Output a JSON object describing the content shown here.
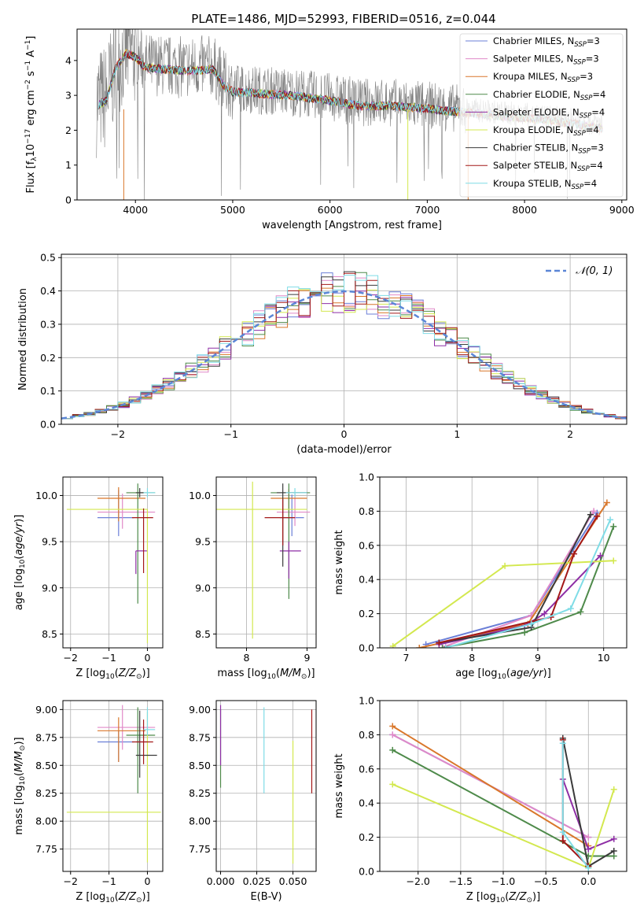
{
  "figure": {
    "title": "PLATE=1486, MJD=52993, FIBERID=0516, z=0.044"
  },
  "models": [
    {
      "name": "Chabrier MILES",
      "nssp": "3",
      "color": "#6b7fd7"
    },
    {
      "name": "Salpeter MILES",
      "nssp": "3",
      "color": "#e089c8"
    },
    {
      "name": "Kroupa MILES",
      "nssp": "3",
      "color": "#d9772b"
    },
    {
      "name": "Chabrier ELODIE",
      "nssp": "4",
      "color": "#4e8a4a"
    },
    {
      "name": "Salpeter ELODIE",
      "nssp": "4",
      "color": "#8e2ea5"
    },
    {
      "name": "Kroupa ELODIE",
      "nssp": "4",
      "color": "#d3e84f"
    },
    {
      "name": "Chabrier STELIB",
      "nssp": "3",
      "color": "#3a3a3a"
    },
    {
      "name": "Salpeter STELIB",
      "nssp": "4",
      "color": "#a31818"
    },
    {
      "name": "Kroupa STELIB",
      "nssp": "4",
      "color": "#7fdce6"
    }
  ],
  "chart_data": [
    {
      "id": "spectrum",
      "type": "line",
      "xlabel": "wavelength [Angstrom, rest frame]",
      "ylabel": "Flux [f_λ 10^-17 erg cm^-2 s^-1 A^-1]",
      "xlim": [
        3400,
        9050
      ],
      "ylim": [
        0,
        4.9
      ],
      "xticks": [
        4000,
        5000,
        6000,
        7000,
        8000,
        9000
      ],
      "yticks": [
        0,
        1,
        2,
        3,
        4
      ],
      "data_color": "#808080",
      "data_range": [
        3600,
        8800
      ],
      "continuum": [
        [
          3600,
          2.8
        ],
        [
          3700,
          2.95
        ],
        [
          3800,
          3.9
        ],
        [
          3900,
          4.3
        ],
        [
          4000,
          4.2
        ],
        [
          4100,
          3.9
        ],
        [
          4300,
          3.85
        ],
        [
          4500,
          3.8
        ],
        [
          4800,
          3.85
        ],
        [
          4900,
          3.4
        ],
        [
          5000,
          3.2
        ],
        [
          5300,
          3.15
        ],
        [
          5600,
          3.1
        ],
        [
          6000,
          2.95
        ],
        [
          6300,
          2.8
        ],
        [
          6600,
          2.8
        ],
        [
          7000,
          2.72
        ],
        [
          7400,
          2.6
        ],
        [
          7800,
          2.5
        ],
        [
          8200,
          2.4
        ],
        [
          8600,
          2.25
        ],
        [
          8800,
          2.15
        ]
      ]
    },
    {
      "id": "residuals",
      "type": "histogram",
      "xlabel": "(data-model)/error",
      "ylabel": "Normed distribution",
      "xlim": [
        -2.5,
        2.5
      ],
      "ylim": [
        0,
        0.51
      ],
      "xticks": [
        -2,
        -1,
        0,
        1,
        2
      ],
      "yticks": [
        0.0,
        0.1,
        0.2,
        0.3,
        0.4,
        0.5
      ],
      "reference": {
        "label": "𝒩(0, 1)",
        "mu": 0,
        "sigma": 1,
        "color": "#5b86d6"
      }
    },
    {
      "id": "age_vs_Z",
      "type": "errorbar",
      "xlabel": "Z [log10(Z/Z⊙)]",
      "ylabel": "age [log10(age/yr)]",
      "xlim": [
        -2.2,
        0.4
      ],
      "ylim": [
        8.35,
        10.2
      ],
      "xticks": [
        -2,
        -1,
        0
      ],
      "yticks": [
        8.5,
        9.0,
        9.5,
        10.0
      ]
    },
    {
      "id": "age_vs_mass",
      "type": "errorbar",
      "xlabel": "mass [log10(M/M⊙)]",
      "ylabel": "",
      "xlim": [
        7.5,
        9.15
      ],
      "ylim": [
        8.35,
        10.2
      ],
      "xticks": [
        8,
        9
      ],
      "yticks": [
        8.5,
        9.0,
        9.5,
        10.0
      ]
    },
    {
      "id": "mw_vs_age",
      "type": "line",
      "xlabel": "age [log10(age/yr)]",
      "ylabel": "mass weight",
      "xlim": [
        6.6,
        10.35
      ],
      "ylim": [
        0,
        1.0
      ],
      "xticks": [
        7,
        8,
        9,
        10
      ],
      "yticks": [
        0.0,
        0.2,
        0.4,
        0.6,
        0.8,
        1.0
      ],
      "series": [
        {
          "model": 0,
          "x": [
            7.3,
            8.9,
            9.9
          ],
          "y": [
            0.02,
            0.19,
            0.79
          ]
        },
        {
          "model": 1,
          "x": [
            7.6,
            8.9,
            9.85
          ],
          "y": [
            0.01,
            0.19,
            0.8
          ]
        },
        {
          "model": 2,
          "x": [
            7.2,
            8.85,
            10.05
          ],
          "y": [
            0.0,
            0.14,
            0.85
          ]
        },
        {
          "model": 3,
          "x": [
            7.55,
            8.8,
            9.65,
            10.15
          ],
          "y": [
            0.0,
            0.09,
            0.21,
            0.71
          ]
        },
        {
          "model": 4,
          "x": [
            7.5,
            8.8,
            9.1,
            9.95
          ],
          "y": [
            0.02,
            0.13,
            0.2,
            0.54
          ]
        },
        {
          "model": 5,
          "x": [
            6.8,
            8.5,
            10.15
          ],
          "y": [
            0.01,
            0.48,
            0.51
          ]
        },
        {
          "model": 6,
          "x": [
            7.5,
            8.9,
            9.8
          ],
          "y": [
            0.03,
            0.12,
            0.78
          ]
        },
        {
          "model": 7,
          "x": [
            7.5,
            9.2,
            9.55,
            9.9
          ],
          "y": [
            0.03,
            0.18,
            0.55,
            0.77
          ]
        },
        {
          "model": 8,
          "x": [
            7.6,
            8.9,
            9.5,
            10.1
          ],
          "y": [
            0.0,
            0.14,
            0.23,
            0.75
          ]
        }
      ]
    },
    {
      "id": "mass_vs_Z",
      "type": "errorbar",
      "xlabel": "Z [log10(Z/Z⊙)]",
      "ylabel": "mass [log10(M/M⊙)]",
      "xlim": [
        -2.2,
        0.4
      ],
      "ylim": [
        7.55,
        9.08
      ],
      "xticks": [
        -2,
        -1,
        0
      ],
      "yticks": [
        7.75,
        8.0,
        8.25,
        8.5,
        8.75,
        9.0
      ]
    },
    {
      "id": "mass_vs_ebv",
      "type": "errorbar",
      "xlabel": "E(B-V)",
      "ylabel": "",
      "xlim": [
        -0.003,
        0.066
      ],
      "ylim": [
        7.55,
        9.08
      ],
      "xticks": [
        0.0,
        0.025,
        0.05
      ],
      "yticks": [
        7.75,
        8.0,
        8.25,
        8.5,
        8.75,
        9.0
      ]
    },
    {
      "id": "mw_vs_Z",
      "type": "line",
      "xlabel": "Z [log10(Z/Z⊙)]",
      "ylabel": "mass weight",
      "xlim": [
        -2.45,
        0.45
      ],
      "ylim": [
        0,
        1.0
      ],
      "xticks": [
        -2.0,
        -1.5,
        -1.0,
        -0.5,
        0.0
      ],
      "yticks": [
        0.0,
        0.2,
        0.4,
        0.6,
        0.8,
        1.0
      ],
      "series": [
        {
          "model": 0,
          "x": [
            -2.3,
            0.0
          ],
          "y": [
            0.8,
            0.2
          ]
        },
        {
          "model": 1,
          "x": [
            -2.3,
            0.0
          ],
          "y": [
            0.8,
            0.2
          ]
        },
        {
          "model": 2,
          "x": [
            -2.3,
            0.0
          ],
          "y": [
            0.85,
            0.15
          ]
        },
        {
          "model": 3,
          "x": [
            -2.3,
            0.0,
            0.3
          ],
          "y": [
            0.71,
            0.09,
            0.09
          ]
        },
        {
          "model": 4,
          "x": [
            -0.3,
            0.0,
            0.3
          ],
          "y": [
            0.54,
            0.13,
            0.19
          ]
        },
        {
          "model": 5,
          "x": [
            -2.3,
            0.0,
            0.3
          ],
          "y": [
            0.51,
            0.02,
            0.48
          ]
        },
        {
          "model": 6,
          "x": [
            -0.3,
            0.0,
            0.3
          ],
          "y": [
            0.78,
            0.03,
            0.12
          ]
        },
        {
          "model": 7,
          "x": [
            -0.3,
            -0.3,
            0.0
          ],
          "y": [
            0.77,
            0.18,
            0.03
          ]
        },
        {
          "model": 8,
          "x": [
            -0.3,
            -0.3,
            0.0
          ],
          "y": [
            0.75,
            0.23,
            0.02
          ]
        }
      ]
    }
  ],
  "errorbars": {
    "age_vs_Z": [
      {
        "model": 0,
        "x": -0.75,
        "xerr": [
          0.55,
          0.4
        ],
        "y": 9.76,
        "yerr": [
          0.2,
          0.3
        ]
      },
      {
        "model": 1,
        "x": -0.65,
        "xerr": [
          0.65,
          0.85
        ],
        "y": 9.82,
        "yerr": [
          0.18,
          0.2
        ]
      },
      {
        "model": 2,
        "x": -0.75,
        "xerr": [
          0.55,
          0.7
        ],
        "y": 9.97,
        "yerr": [
          0.25,
          0.12
        ]
      },
      {
        "model": 3,
        "x": -0.25,
        "xerr": [
          0.3,
          0.45
        ],
        "y": 10.03,
        "yerr": [
          1.2,
          0.1
        ]
      },
      {
        "model": 4,
        "x": -0.3,
        "xerr": [
          0.0,
          0.3
        ],
        "y": 9.4,
        "yerr": [
          0.25,
          0.0
        ]
      },
      {
        "model": 5,
        "x": 0.0,
        "xerr": [
          2.1,
          0.0
        ],
        "y": 9.85,
        "yerr": [
          1.45,
          0.0
        ]
      },
      {
        "model": 6,
        "x": -0.2,
        "xerr": [
          0.1,
          0.1
        ],
        "y": 10.03,
        "yerr": [
          0.05,
          0.05
        ]
      },
      {
        "model": 7,
        "x": -0.1,
        "xerr": [
          0.3,
          0.25
        ],
        "y": 9.76,
        "yerr": [
          0.6,
          0.1
        ]
      },
      {
        "model": 8,
        "x": 0.0,
        "xerr": [
          0.1,
          0.2
        ],
        "y": 10.03,
        "yerr": [
          0.05,
          0.05
        ]
      }
    ],
    "age_vs_mass": [
      {
        "model": 0,
        "x": 8.75,
        "xerr": [
          0.2,
          0.2
        ],
        "y": 9.76,
        "yerr": [
          0.2,
          0.25
        ]
      },
      {
        "model": 1,
        "x": 8.8,
        "xerr": [
          0.3,
          0.25
        ],
        "y": 9.82,
        "yerr": [
          0.15,
          0.2
        ]
      },
      {
        "model": 2,
        "x": 8.7,
        "xerr": [
          0.3,
          0.3
        ],
        "y": 9.97,
        "yerr": [
          0.2,
          0.1
        ]
      },
      {
        "model": 3,
        "x": 8.7,
        "xerr": [
          0.3,
          0.35
        ],
        "y": 10.03,
        "yerr": [
          1.15,
          0.1
        ]
      },
      {
        "model": 4,
        "x": 8.7,
        "xerr": [
          0.15,
          0.2
        ],
        "y": 9.4,
        "yerr": [
          0.3,
          0.1
        ]
      },
      {
        "model": 5,
        "x": 8.1,
        "xerr": [
          0.6,
          0.9
        ],
        "y": 9.85,
        "yerr": [
          1.4,
          0.3
        ]
      },
      {
        "model": 6,
        "x": 8.6,
        "xerr": [
          0.1,
          0.4
        ],
        "y": 10.03,
        "yerr": [
          0.8,
          0.1
        ]
      },
      {
        "model": 7,
        "x": 8.6,
        "xerr": [
          0.3,
          0.2
        ],
        "y": 9.76,
        "yerr": [
          0.3,
          0.2
        ]
      },
      {
        "model": 8,
        "x": 8.8,
        "xerr": [
          0.15,
          0.2
        ],
        "y": 10.03,
        "yerr": [
          0.05,
          0.05
        ]
      }
    ],
    "mass_vs_Z": [
      {
        "model": 0,
        "x": -0.75,
        "xerr": [
          0.55,
          0.4
        ],
        "y": 8.71,
        "yerr": [
          0.18,
          0.1
        ]
      },
      {
        "model": 1,
        "x": -0.65,
        "xerr": [
          0.65,
          0.85
        ],
        "y": 8.84,
        "yerr": [
          0.2,
          0.2
        ]
      },
      {
        "model": 2,
        "x": -0.75,
        "xerr": [
          0.55,
          0.7
        ],
        "y": 8.81,
        "yerr": [
          0.28,
          0.12
        ]
      },
      {
        "model": 3,
        "x": -0.25,
        "xerr": [
          0.3,
          0.45
        ],
        "y": 8.77,
        "yerr": [
          0.52,
          0.25
        ]
      },
      {
        "model": 4,
        "x": -0.3,
        "xerr": [
          0.0,
          0.3
        ],
        "y": 8.71,
        "yerr": [
          0.0,
          0.0
        ]
      },
      {
        "model": 5,
        "x": 0.0,
        "xerr": [
          2.1,
          0.35
        ],
        "y": 8.08,
        "yerr": [
          0.45,
          0.9
        ]
      },
      {
        "model": 6,
        "x": -0.2,
        "xerr": [
          0.1,
          0.45
        ],
        "y": 8.59,
        "yerr": [
          0.2,
          0.4
        ]
      },
      {
        "model": 7,
        "x": -0.1,
        "xerr": [
          0.3,
          0.25
        ],
        "y": 8.71,
        "yerr": [
          0.2,
          0.2
        ]
      },
      {
        "model": 8,
        "x": 0.0,
        "xerr": [
          0.1,
          0.2
        ],
        "y": 8.82,
        "yerr": [
          0.05,
          0.2
        ]
      }
    ],
    "mass_vs_ebv": [
      {
        "model": 3,
        "x": 0.0,
        "xerr": [
          0,
          0
        ],
        "y": 8.7,
        "yerr": [
          0.4,
          0.3
        ]
      },
      {
        "model": 4,
        "x": 0.0,
        "xerr": [
          0,
          0
        ],
        "y": 8.77,
        "yerr": [
          0.27,
          0.27
        ]
      },
      {
        "model": 8,
        "x": 0.03,
        "xerr": [
          0,
          0
        ],
        "y": 8.6,
        "yerr": [
          0.35,
          0.42
        ]
      },
      {
        "model": 5,
        "x": 0.05,
        "xerr": [
          0,
          0
        ],
        "y": 8.1,
        "yerr": [
          0.48,
          0.62
        ]
      },
      {
        "model": 7,
        "x": 0.063,
        "xerr": [
          0,
          0
        ],
        "y": 8.6,
        "yerr": [
          0.35,
          0.4
        ]
      }
    ]
  }
}
